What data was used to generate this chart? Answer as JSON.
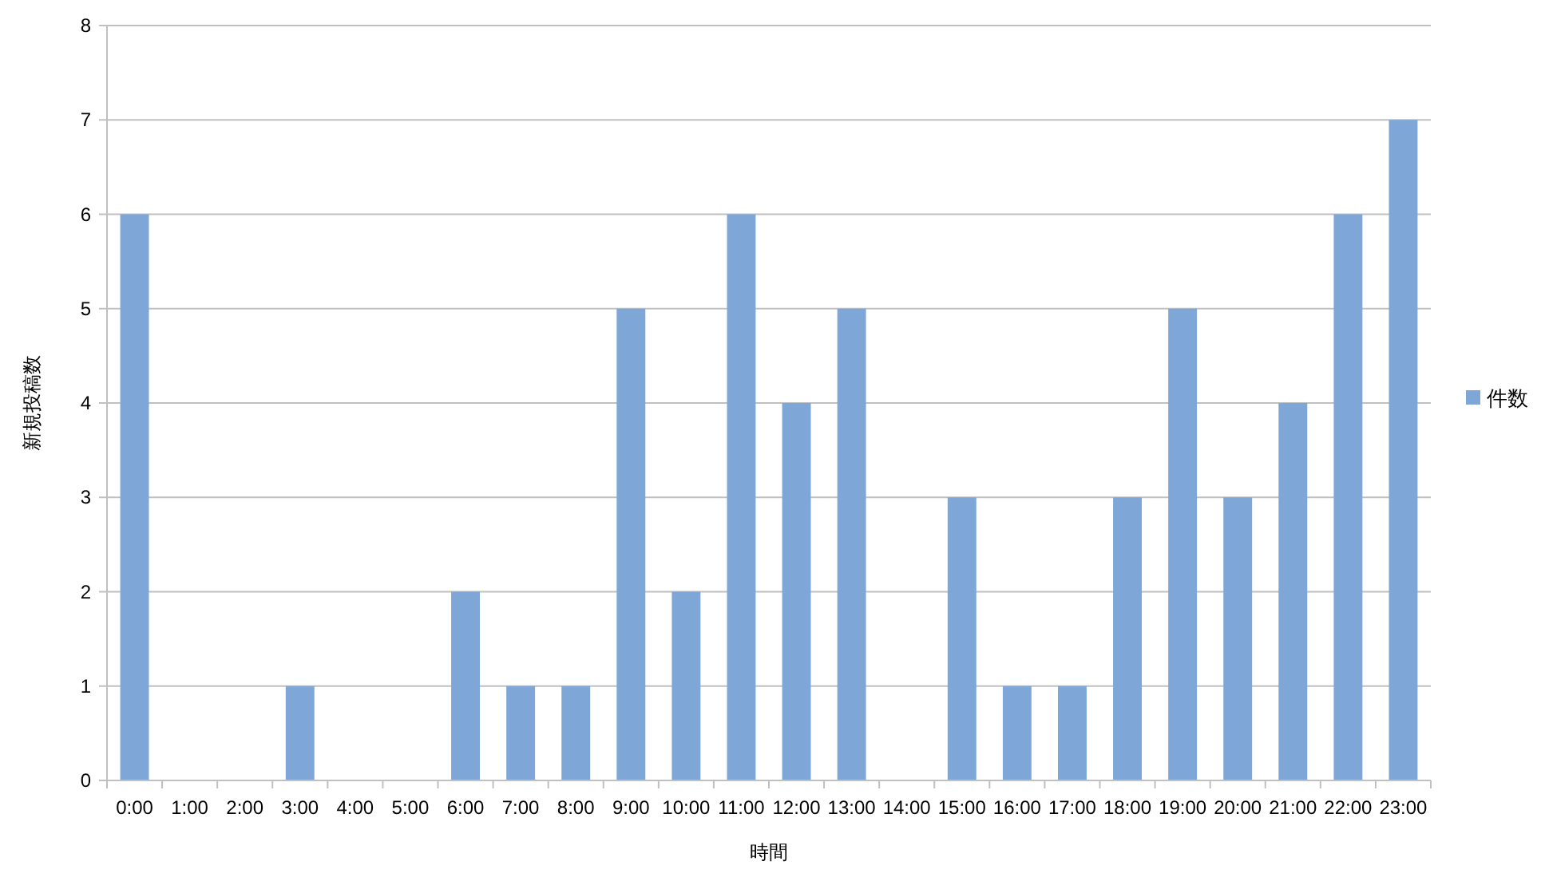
{
  "chart_data": {
    "type": "bar",
    "xlabel": "時間",
    "ylabel": "新規投稿数",
    "categories": [
      "0:00",
      "1:00",
      "2:00",
      "3:00",
      "4:00",
      "5:00",
      "6:00",
      "7:00",
      "8:00",
      "9:00",
      "10:00",
      "11:00",
      "12:00",
      "13:00",
      "14:00",
      "15:00",
      "16:00",
      "17:00",
      "18:00",
      "19:00",
      "20:00",
      "21:00",
      "22:00",
      "23:00"
    ],
    "series": [
      {
        "name": "件数",
        "color": "#7ea7d8",
        "values": [
          6,
          0,
          0,
          1,
          0,
          0,
          2,
          1,
          1,
          5,
          2,
          6,
          4,
          5,
          0,
          3,
          1,
          1,
          3,
          5,
          3,
          4,
          6,
          7
        ]
      }
    ],
    "ylim": [
      0,
      8
    ],
    "yticks": [
      0,
      1,
      2,
      3,
      4,
      5,
      6,
      7,
      8
    ],
    "grid": "y",
    "legend": "right"
  }
}
